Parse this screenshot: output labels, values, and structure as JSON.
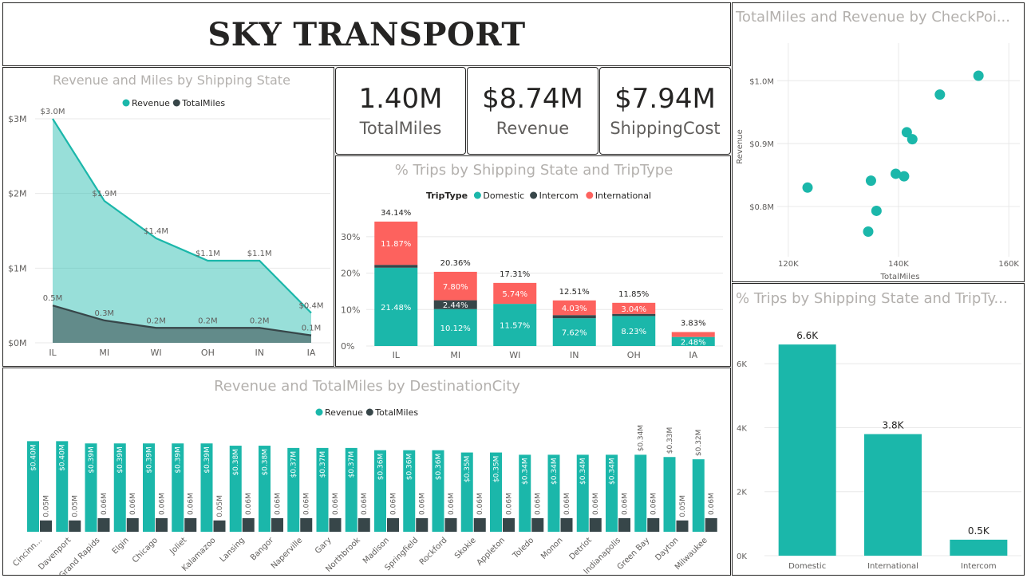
{
  "header": {
    "title": "SKY TRANSPORT"
  },
  "cards": [
    {
      "value": "1.40M",
      "label": "TotalMiles"
    },
    {
      "value": "$8.74M",
      "label": "Revenue"
    },
    {
      "value": "$7.94M",
      "label": "ShippingCost"
    }
  ],
  "colors": {
    "teal": "#1bb7aa",
    "dark": "#374649",
    "red": "#fd625e",
    "grid": "#e8e8e8",
    "axis": "#605e5c"
  },
  "chart_data": [
    {
      "id": "area",
      "type": "area",
      "title": "Revenue and Miles by Shipping State",
      "categories": [
        "IL",
        "MI",
        "WI",
        "OH",
        "IN",
        "IA"
      ],
      "series": [
        {
          "name": "Revenue",
          "values": [
            3.0,
            1.9,
            1.4,
            1.1,
            1.1,
            0.4
          ],
          "labels": [
            "$3.0M",
            "$1.9M",
            "$1.4M",
            "$1.1M",
            "$1.1M",
            "$0.4M"
          ]
        },
        {
          "name": "TotalMiles",
          "values": [
            0.5,
            0.3,
            0.2,
            0.2,
            0.2,
            0.1
          ],
          "labels": [
            "0.5M",
            "0.3M",
            "0.2M",
            "0.2M",
            "0.2M",
            "0.1M"
          ]
        }
      ],
      "ylim": [
        0,
        3
      ],
      "yticks": [
        "$0M",
        "$1M",
        "$2M",
        "$3M"
      ]
    },
    {
      "id": "stacked",
      "type": "bar",
      "title": "% Trips by Shipping State and TripType",
      "legend_title": "TripType",
      "categories": [
        "IL",
        "MI",
        "WI",
        "IN",
        "OH",
        "IA"
      ],
      "series": [
        {
          "name": "Domestic",
          "values": [
            21.48,
            10.12,
            11.57,
            7.62,
            8.23,
            2.48
          ]
        },
        {
          "name": "Intercom",
          "values": [
            0.79,
            2.44,
            0.0,
            0.86,
            0.58,
            0.0
          ]
        },
        {
          "name": "International",
          "values": [
            11.87,
            7.8,
            5.74,
            4.03,
            3.04,
            1.35
          ]
        }
      ],
      "segment_labels": [
        [
          "21.48%",
          "10.12%",
          "11.57%",
          "7.62%",
          "8.23%",
          "2.48%"
        ],
        [
          "",
          "2.44%",
          "",
          "",
          "",
          ""
        ],
        [
          "11.87%",
          "7.80%",
          "5.74%",
          "4.03%",
          "3.04%",
          ""
        ]
      ],
      "totals": [
        "34.14%",
        "20.36%",
        "17.31%",
        "12.51%",
        "11.85%",
        "3.83%"
      ],
      "ylim": [
        0,
        35
      ],
      "yticks": [
        "0%",
        "10%",
        "20%",
        "30%"
      ]
    },
    {
      "id": "scatter",
      "type": "scatter",
      "title": "TotalMiles and Revenue by CheckPoi...",
      "xlabel": "TotalMiles",
      "ylabel": "Revenue",
      "x": [
        154.5,
        147.5,
        141.5,
        142.5,
        139.5,
        141,
        123.5,
        135,
        136,
        134.5
      ],
      "y": [
        1.008,
        0.978,
        0.918,
        0.907,
        0.852,
        0.848,
        0.83,
        0.841,
        0.793,
        0.76
      ],
      "xlim": [
        118,
        162
      ],
      "ylim": [
        0.72,
        1.06
      ],
      "xticks": [
        "120K",
        "140K",
        "160K"
      ],
      "yticks": [
        "$0.8M",
        "$0.9M",
        "$1.0M"
      ]
    },
    {
      "id": "triptype",
      "type": "bar",
      "title": "% Trips by Shipping State and TripTy...",
      "categories": [
        "Domestic",
        "International",
        "Intercom"
      ],
      "values": [
        6.6,
        3.8,
        0.5
      ],
      "labels": [
        "6.6K",
        "3.8K",
        "0.5K"
      ],
      "ylim": [
        0,
        7.5
      ],
      "yticks": [
        "0K",
        "2K",
        "4K",
        "6K"
      ]
    },
    {
      "id": "city",
      "type": "bar",
      "title": "Revenue and TotalMiles by DestinationCity",
      "categories": [
        "Cincinn...",
        "Davenport",
        "Grand Rapids",
        "Elgin",
        "Chicago",
        "Joliet",
        "Kalamazoo",
        "Lansing",
        "Bangor",
        "Naperville",
        "Gary",
        "Northbrook",
        "Madison",
        "Springfield",
        "Rockford",
        "Skokie",
        "Appleton",
        "Toledo",
        "Monon",
        "Detriot",
        "Indianapolis",
        "Green Bay",
        "Dayton",
        "Milwaukee"
      ],
      "series": [
        {
          "name": "Revenue",
          "values": [
            0.4,
            0.4,
            0.39,
            0.39,
            0.39,
            0.39,
            0.39,
            0.38,
            0.38,
            0.37,
            0.37,
            0.37,
            0.36,
            0.36,
            0.36,
            0.35,
            0.35,
            0.34,
            0.34,
            0.34,
            0.34,
            0.34,
            0.33,
            0.32
          ],
          "labels": [
            "$0.40M",
            "$0.40M",
            "$0.39M",
            "$0.39M",
            "$0.39M",
            "$0.39M",
            "$0.39M",
            "$0.38M",
            "$0.38M",
            "$0.37M",
            "$0.37M",
            "$0.37M",
            "$0.36M",
            "$0.36M",
            "$0.36M",
            "$0.35M",
            "$0.35M",
            "$0.34M",
            "$0.34M",
            "$0.34M",
            "$0.34M",
            "$0.34M",
            "$0.33M",
            "$0.32M"
          ]
        },
        {
          "name": "TotalMiles",
          "values": [
            0.05,
            0.05,
            0.06,
            0.06,
            0.06,
            0.06,
            0.05,
            0.06,
            0.06,
            0.06,
            0.06,
            0.06,
            0.06,
            0.06,
            0.06,
            0.06,
            0.06,
            0.06,
            0.06,
            0.06,
            0.06,
            0.06,
            0.05,
            0.06
          ],
          "labels": [
            "0.05M",
            "0.05M",
            "0.06M",
            "0.06M",
            "0.06M",
            "0.06M",
            "0.05M",
            "0.06M",
            "0.06M",
            "0.06M",
            "0.06M",
            "0.06M",
            "0.06M",
            "0.06M",
            "0.06M",
            "0.06M",
            "0.06M",
            "0.06M",
            "0.06M",
            "0.06M",
            "0.06M",
            "0.06M",
            "0.05M",
            "0.06M"
          ]
        }
      ],
      "ylim": [
        0,
        0.44
      ]
    }
  ]
}
